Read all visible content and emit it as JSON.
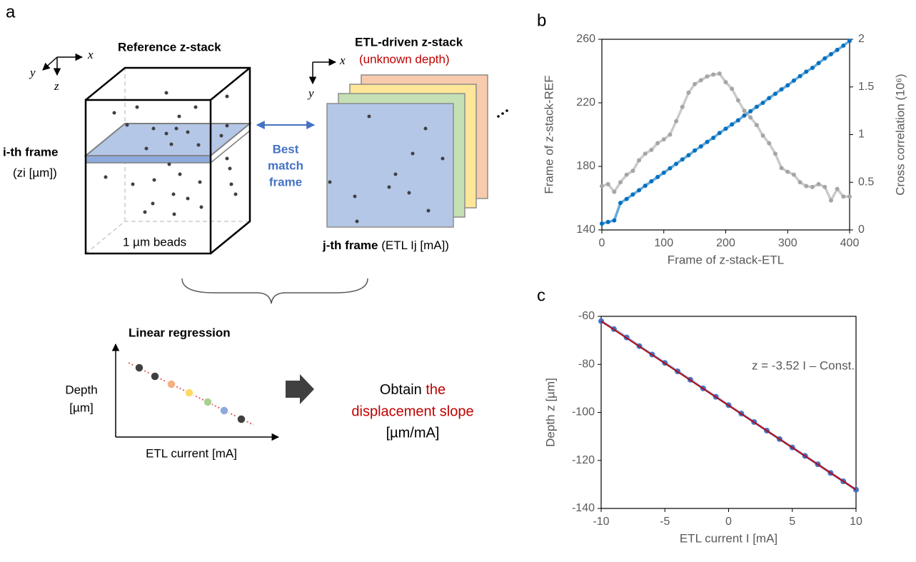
{
  "panels": {
    "a": "a",
    "b": "b",
    "c": "c"
  },
  "diagram": {
    "axes_ref": {
      "x": "x",
      "y": "y",
      "z": "z"
    },
    "axes_etl": {
      "x": "x",
      "y": "y"
    },
    "reference_title": "Reference z-stack",
    "etl_title": "ETL-driven z-stack",
    "etl_subtitle": "(unknown depth)",
    "i_frame": "i-th frame",
    "i_frame_unit": "(zi [µm])",
    "beads": "1 µm beads",
    "best_match": [
      "Best",
      "match",
      "frame"
    ],
    "j_frame": "j-th frame",
    "j_frame_unit": "(ETL Ij [mA])",
    "regression_title": "Linear regression",
    "regression_y": [
      "Depth",
      "[µm]"
    ],
    "regression_x": "ETL current [mA]",
    "result": [
      "Obtain",
      "the",
      "displacement slope",
      "[µm/mA]"
    ]
  },
  "chart_data": [
    {
      "type": "scatter",
      "x_label": "Frame of z-stack-ETL",
      "y_label": "Frame of z-stack-REF",
      "y2_label": "Cross correlation (10⁶)",
      "x": [
        0,
        10,
        20,
        30,
        40,
        50,
        60,
        70,
        80,
        90,
        100,
        110,
        120,
        130,
        140,
        150,
        160,
        170,
        180,
        190,
        200,
        210,
        220,
        230,
        240,
        250,
        260,
        270,
        280,
        290,
        300,
        310,
        320,
        330,
        340,
        350,
        360,
        370,
        380,
        390,
        400
      ],
      "series": [
        {
          "color": "#0070c0",
          "values": [
            144,
            145,
            146,
            157,
            159.5,
            162.3,
            165,
            167.8,
            170.6,
            173.3,
            176,
            178.8,
            181.6,
            184.4,
            187,
            190,
            192.6,
            195.4,
            198,
            201,
            203.7,
            206.4,
            209,
            212,
            214.7,
            217.5,
            220,
            223,
            225.7,
            228.5,
            231,
            234,
            236.8,
            239.6,
            242,
            245,
            248,
            250.6,
            253.3,
            256,
            259
          ]
        },
        {
          "color": "#a6a6a6",
          "axis": "y2",
          "values": [
            0.46,
            0.48,
            0.4,
            0.5,
            0.58,
            0.62,
            0.73,
            0.8,
            0.84,
            0.91,
            0.95,
            1,
            1.14,
            1.29,
            1.44,
            1.53,
            1.57,
            1.61,
            1.63,
            1.64,
            1.55,
            1.48,
            1.36,
            1.25,
            1.18,
            1.1,
            0.99,
            0.91,
            0.8,
            0.65,
            0.61,
            0.58,
            0.5,
            0.46,
            0.45,
            0.48,
            0.45,
            0.31,
            0.43,
            0.35,
            0.35
          ]
        }
      ],
      "xlim": [
        0,
        400
      ],
      "xticks": [
        0,
        100,
        200,
        300,
        400
      ],
      "ylim": [
        140,
        260
      ],
      "yticks": [
        140,
        180,
        220,
        260
      ],
      "y2lim": [
        0,
        2
      ],
      "y2ticks": [
        0,
        0.5,
        1,
        1.5,
        2
      ]
    },
    {
      "type": "scatter",
      "x_label": "ETL current I [mA]",
      "y_label": "Depth z [µm]",
      "annotation": "z = -3.52 I – Const.",
      "x": [
        -10,
        -9,
        -8,
        -7,
        -6,
        -5,
        -4,
        -3,
        -2,
        -1,
        0,
        1,
        2,
        3,
        4,
        5,
        6,
        7,
        8,
        9,
        10
      ],
      "series": [
        {
          "color": "#4472c4",
          "values": [
            -62,
            -65.3,
            -68.8,
            -72.4,
            -75.9,
            -79.4,
            -82.9,
            -86.4,
            -90,
            -93.5,
            -97,
            -100.5,
            -104,
            -107.6,
            -111.1,
            -114.6,
            -118.1,
            -121.6,
            -125.2,
            -128.7,
            -132.2
          ]
        }
      ],
      "fit_line": {
        "color": "#c00000",
        "x": [
          -10,
          10
        ],
        "values": [
          -62,
          -132.2
        ]
      },
      "xlim": [
        -10,
        10
      ],
      "xticks": [
        -10,
        -5,
        0,
        5,
        10
      ],
      "ylim": [
        -140,
        -60
      ],
      "yticks": [
        -140,
        -120,
        -100,
        -80,
        -60
      ]
    }
  ]
}
